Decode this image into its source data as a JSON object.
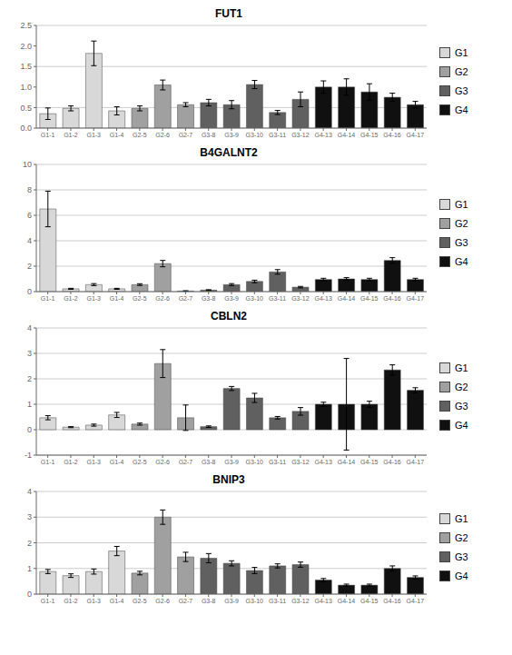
{
  "chart_data": [
    {
      "type": "bar",
      "title": "FUT1",
      "grid": true,
      "legend": "right",
      "categories": [
        "G1-1",
        "G1-2",
        "G1-3",
        "G1-4",
        "G2-5",
        "G2-6",
        "G2-7",
        "G3-8",
        "G3-9",
        "G3-10",
        "G3-11",
        "G3-12",
        "G4-13",
        "G4-14",
        "G4-15",
        "G4-16",
        "G4-17"
      ],
      "ylim": [
        0,
        2.5
      ],
      "yticks": [
        {
          "value": 0,
          "label": "0.0"
        },
        0.5,
        {
          "value": 1.0,
          "label": "1.0"
        },
        1.5,
        {
          "value": 2.0,
          "label": "2.0"
        },
        2.5
      ],
      "series": [
        {
          "name": "G1",
          "color": "#d8d8d8",
          "values": [
            0.35,
            0.48,
            1.82,
            0.42,
            null,
            null,
            null,
            null,
            null,
            null,
            null,
            null,
            null,
            null,
            null,
            null,
            null
          ],
          "errors": [
            0.14,
            0.06,
            0.3,
            0.1,
            null,
            null,
            null,
            null,
            null,
            null,
            null,
            null,
            null,
            null,
            null,
            null,
            null
          ]
        },
        {
          "name": "G2",
          "color": "#a0a0a0",
          "values": [
            null,
            null,
            null,
            null,
            0.48,
            1.05,
            0.57,
            null,
            null,
            null,
            null,
            null,
            null,
            null,
            null,
            null,
            null
          ],
          "errors": [
            null,
            null,
            null,
            null,
            0.06,
            0.12,
            0.05,
            null,
            null,
            null,
            null,
            null,
            null,
            null,
            null,
            null,
            null
          ]
        },
        {
          "name": "G3",
          "color": "#606060",
          "values": [
            null,
            null,
            null,
            null,
            null,
            null,
            null,
            0.62,
            0.57,
            1.06,
            0.38,
            0.7,
            null,
            null,
            null,
            null,
            null
          ],
          "errors": [
            null,
            null,
            null,
            null,
            null,
            null,
            null,
            0.08,
            0.1,
            0.1,
            0.05,
            0.18,
            null,
            null,
            null,
            null,
            null
          ]
        },
        {
          "name": "G4",
          "color": "#101010",
          "values": [
            null,
            null,
            null,
            null,
            null,
            null,
            null,
            null,
            null,
            null,
            null,
            null,
            1.0,
            1.0,
            0.88,
            0.75,
            0.57
          ],
          "errors": [
            null,
            null,
            null,
            null,
            null,
            null,
            null,
            null,
            null,
            null,
            null,
            null,
            0.15,
            0.2,
            0.2,
            0.1,
            0.08
          ]
        }
      ]
    },
    {
      "type": "bar",
      "title": "B4GALNT2",
      "grid": true,
      "legend": "right",
      "categories": [
        "G1-1",
        "G1-2",
        "G1-3",
        "G1-4",
        "G2-5",
        "G2-6",
        "G2-7",
        "G3-8",
        "G3-9",
        "G3-10",
        "G3-11",
        "G3-12",
        "G4-13",
        "G4-14",
        "G4-15",
        "G4-16",
        "G4-17"
      ],
      "ylim": [
        0,
        10
      ],
      "yticks": [
        0,
        2,
        4,
        6,
        8,
        10
      ],
      "series": [
        {
          "name": "G1",
          "color": "#d8d8d8",
          "values": [
            6.5,
            0.22,
            0.55,
            0.22,
            null,
            null,
            null,
            null,
            null,
            null,
            null,
            null,
            null,
            null,
            null,
            null,
            null
          ],
          "errors": [
            1.4,
            0.04,
            0.08,
            0.04,
            null,
            null,
            null,
            null,
            null,
            null,
            null,
            null,
            null,
            null,
            null,
            null,
            null
          ]
        },
        {
          "name": "G2",
          "color": "#a0a0a0",
          "values": [
            null,
            null,
            null,
            null,
            0.55,
            2.2,
            0.05,
            null,
            null,
            null,
            null,
            null,
            null,
            null,
            null,
            null,
            null
          ],
          "errors": [
            null,
            null,
            null,
            null,
            0.07,
            0.25,
            0.02,
            null,
            null,
            null,
            null,
            null,
            null,
            null,
            null,
            null,
            null
          ]
        },
        {
          "name": "G3",
          "color": "#606060",
          "values": [
            null,
            null,
            null,
            null,
            null,
            null,
            null,
            0.12,
            0.55,
            0.8,
            1.55,
            0.35,
            null,
            null,
            null,
            null,
            null
          ],
          "errors": [
            null,
            null,
            null,
            null,
            null,
            null,
            null,
            0.03,
            0.08,
            0.1,
            0.18,
            0.06,
            null,
            null,
            null,
            null,
            null
          ]
        },
        {
          "name": "G4",
          "color": "#101010",
          "values": [
            null,
            null,
            null,
            null,
            null,
            null,
            null,
            null,
            null,
            null,
            null,
            null,
            0.95,
            1.0,
            0.95,
            2.45,
            0.95
          ],
          "errors": [
            null,
            null,
            null,
            null,
            null,
            null,
            null,
            null,
            null,
            null,
            null,
            null,
            0.1,
            0.1,
            0.1,
            0.22,
            0.1
          ]
        }
      ]
    },
    {
      "type": "bar",
      "title": "CBLN2",
      "grid": true,
      "legend": "right",
      "categories": [
        "G1-1",
        "G1-2",
        "G1-3",
        "G1-4",
        "G2-5",
        "G2-6",
        "G2-7",
        "G3-8",
        "G3-9",
        "G3-10",
        "G3-11",
        "G3-12",
        "G4-13",
        "G4-14",
        "G4-15",
        "G4-16",
        "G4-17"
      ],
      "ylim": [
        -1,
        4
      ],
      "yticks": [
        -1,
        0,
        1,
        2,
        3,
        4
      ],
      "series": [
        {
          "name": "G1",
          "color": "#d8d8d8",
          "values": [
            0.47,
            0.1,
            0.18,
            0.58,
            null,
            null,
            null,
            null,
            null,
            null,
            null,
            null,
            null,
            null,
            null,
            null,
            null
          ],
          "errors": [
            0.08,
            0.02,
            0.04,
            0.1,
            null,
            null,
            null,
            null,
            null,
            null,
            null,
            null,
            null,
            null,
            null,
            null,
            null
          ]
        },
        {
          "name": "G2",
          "color": "#a0a0a0",
          "values": [
            null,
            null,
            null,
            null,
            0.22,
            2.6,
            0.47,
            null,
            null,
            null,
            null,
            null,
            null,
            null,
            null,
            null,
            null
          ],
          "errors": [
            null,
            null,
            null,
            null,
            0.04,
            0.55,
            0.5,
            null,
            null,
            null,
            null,
            null,
            null,
            null,
            null,
            null,
            null
          ]
        },
        {
          "name": "G3",
          "color": "#606060",
          "values": [
            null,
            null,
            null,
            null,
            null,
            null,
            null,
            0.12,
            1.62,
            1.25,
            0.47,
            0.72,
            null,
            null,
            null,
            null,
            null
          ],
          "errors": [
            null,
            null,
            null,
            null,
            null,
            null,
            null,
            0.03,
            0.08,
            0.18,
            0.05,
            0.15,
            null,
            null,
            null,
            null,
            null
          ]
        },
        {
          "name": "G4",
          "color": "#101010",
          "values": [
            null,
            null,
            null,
            null,
            null,
            null,
            null,
            null,
            null,
            null,
            null,
            null,
            1.0,
            1.0,
            1.0,
            2.35,
            1.55
          ],
          "errors": [
            null,
            null,
            null,
            null,
            null,
            null,
            null,
            null,
            null,
            null,
            null,
            null,
            0.08,
            1.8,
            0.12,
            0.2,
            0.1
          ]
        }
      ]
    },
    {
      "type": "bar",
      "title": "BNIP3",
      "grid": true,
      "legend": "right",
      "categories": [
        "G1-1",
        "G1-2",
        "G1-3",
        "G1-4",
        "G2-5",
        "G2-6",
        "G2-7",
        "G3-8",
        "G3-9",
        "G3-10",
        "G3-11",
        "G3-12",
        "G4-13",
        "G4-14",
        "G4-15",
        "G4-16",
        "G4-17"
      ],
      "ylim": [
        0,
        4
      ],
      "yticks": [
        0,
        1,
        2,
        3,
        4
      ],
      "series": [
        {
          "name": "G1",
          "color": "#d8d8d8",
          "values": [
            0.88,
            0.72,
            0.88,
            1.68,
            null,
            null,
            null,
            null,
            null,
            null,
            null,
            null,
            null,
            null,
            null,
            null,
            null
          ],
          "errors": [
            0.08,
            0.07,
            0.1,
            0.18,
            null,
            null,
            null,
            null,
            null,
            null,
            null,
            null,
            null,
            null,
            null,
            null,
            null
          ]
        },
        {
          "name": "G2",
          "color": "#a0a0a0",
          "values": [
            null,
            null,
            null,
            null,
            0.82,
            3.0,
            1.45,
            null,
            null,
            null,
            null,
            null,
            null,
            null,
            null,
            null,
            null
          ],
          "errors": [
            null,
            null,
            null,
            null,
            0.07,
            0.28,
            0.18,
            null,
            null,
            null,
            null,
            null,
            null,
            null,
            null,
            null,
            null
          ]
        },
        {
          "name": "G3",
          "color": "#606060",
          "values": [
            null,
            null,
            null,
            null,
            null,
            null,
            null,
            1.4,
            1.2,
            0.92,
            1.1,
            1.15,
            null,
            null,
            null,
            null,
            null
          ],
          "errors": [
            null,
            null,
            null,
            null,
            null,
            null,
            null,
            0.18,
            0.1,
            0.12,
            0.08,
            0.1,
            null,
            null,
            null,
            null,
            null
          ]
        },
        {
          "name": "G4",
          "color": "#101010",
          "values": [
            null,
            null,
            null,
            null,
            null,
            null,
            null,
            null,
            null,
            null,
            null,
            null,
            0.55,
            0.35,
            0.35,
            1.0,
            0.65
          ],
          "errors": [
            null,
            null,
            null,
            null,
            null,
            null,
            null,
            null,
            null,
            null,
            null,
            null,
            0.06,
            0.04,
            0.04,
            0.1,
            0.06
          ]
        }
      ]
    }
  ]
}
